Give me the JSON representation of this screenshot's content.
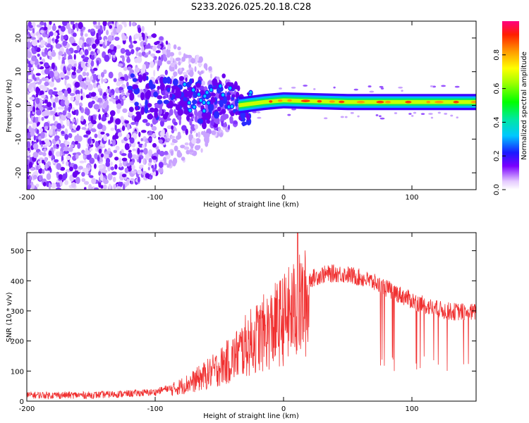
{
  "title": "S233.2026.025.20.18.C28",
  "chart_data": [
    {
      "type": "heatmap",
      "xlabel": "Height of straight line (km)",
      "ylabel": "Frequency (Hz)",
      "xlim": [
        -200,
        150
      ],
      "ylim": [
        -25,
        25
      ],
      "xticks": [
        -200,
        -100,
        0,
        100
      ],
      "yticks": [
        -20,
        -10,
        0,
        10,
        20
      ],
      "xticks_labels": [
        "-200",
        "-100",
        "0",
        "100"
      ],
      "yticks_labels": [
        "-20",
        "-10",
        "0",
        "10",
        "20"
      ],
      "ridge": [
        {
          "x": -120,
          "y": 3
        },
        {
          "x": -100,
          "y": 2
        },
        {
          "x": -80,
          "y": 3
        },
        {
          "x": -60,
          "y": 0
        },
        {
          "x": -45,
          "y": 4
        },
        {
          "x": -35,
          "y": 0
        },
        {
          "x": -25,
          "y": 0.5
        },
        {
          "x": -15,
          "y": 1
        },
        {
          "x": 0,
          "y": 1.5
        },
        {
          "x": 50,
          "y": 1
        },
        {
          "x": 100,
          "y": 1
        },
        {
          "x": 150,
          "y": 1
        }
      ],
      "colorbar": {
        "label": "Normalized spectral amplitude",
        "range": [
          0,
          1
        ],
        "ticks": [
          0.0,
          0.2,
          0.4,
          0.6,
          0.8
        ],
        "ticks_labels": [
          "0.0",
          "0.2",
          "0.4",
          "0.6",
          "0.8"
        ]
      }
    },
    {
      "type": "line",
      "xlabel": "Height of straight line (km)",
      "ylabel": "SNR (10 * v/v)",
      "xlim": [
        -200,
        150
      ],
      "ylim": [
        0,
        560
      ],
      "xticks": [
        -200,
        -100,
        0,
        100
      ],
      "yticks": [
        0,
        100,
        200,
        300,
        400,
        500
      ],
      "xticks_labels": [
        "-200",
        "-100",
        "0",
        "100"
      ],
      "yticks_labels": [
        "0",
        "100",
        "200",
        "300",
        "400",
        "500"
      ],
      "series": [
        {
          "name": "SNR",
          "color": "#f03030",
          "envelope": [
            {
              "x": -200,
              "y": 20
            },
            {
              "x": -150,
              "y": 20
            },
            {
              "x": -120,
              "y": 25
            },
            {
              "x": -100,
              "y": 30
            },
            {
              "x": -85,
              "y": 50
            },
            {
              "x": -70,
              "y": 80
            },
            {
              "x": -55,
              "y": 120
            },
            {
              "x": -40,
              "y": 170
            },
            {
              "x": -30,
              "y": 220
            },
            {
              "x": -20,
              "y": 260
            },
            {
              "x": -10,
              "y": 290
            },
            {
              "x": 0,
              "y": 330
            },
            {
              "x": 10,
              "y": 370
            },
            {
              "x": 20,
              "y": 405
            },
            {
              "x": 30,
              "y": 420
            },
            {
              "x": 40,
              "y": 425
            },
            {
              "x": 50,
              "y": 420
            },
            {
              "x": 60,
              "y": 410
            },
            {
              "x": 70,
              "y": 395
            },
            {
              "x": 80,
              "y": 375
            },
            {
              "x": 90,
              "y": 355
            },
            {
              "x": 100,
              "y": 335
            },
            {
              "x": 110,
              "y": 318
            },
            {
              "x": 120,
              "y": 305
            },
            {
              "x": 130,
              "y": 298
            },
            {
              "x": 150,
              "y": 295
            }
          ],
          "peak": {
            "x": 11,
            "y": 560
          }
        }
      ]
    }
  ]
}
